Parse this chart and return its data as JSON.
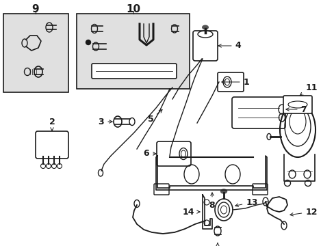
{
  "background_color": "#ffffff",
  "line_color": "#1a1a1a",
  "box9_bg": "#e0e0e0",
  "box10_bg": "#e0e0e0",
  "figsize": [
    4.89,
    3.6
  ],
  "dpi": 100,
  "label_fontsize": 9,
  "arrow_lw": 0.7
}
